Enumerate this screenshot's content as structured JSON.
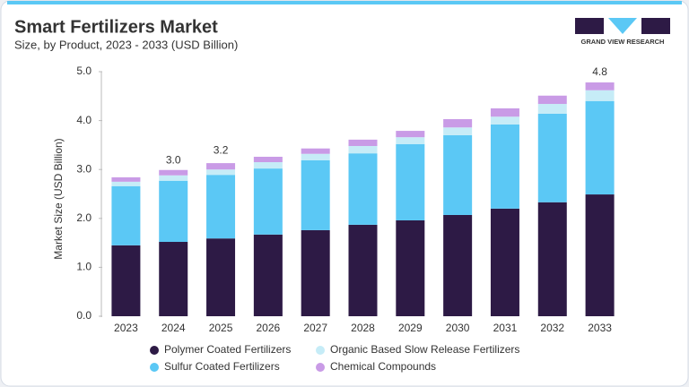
{
  "branding": "GRAND VIEW RESEARCH",
  "chart_data": {
    "type": "stacked-bar",
    "title": "Smart Fertilizers Market",
    "subtitle": "Size, by Product, 2023 - 2033 (USD Billion)",
    "y_label": "Market Size (USD Billion)",
    "categories": [
      "2023",
      "2024",
      "2025",
      "2026",
      "2027",
      "2028",
      "2029",
      "2030",
      "2031",
      "2032",
      "2033"
    ],
    "series": [
      {
        "name": "Polymer Coated Fertilizers",
        "color": "#2d1a45",
        "values": [
          1.45,
          1.52,
          1.59,
          1.67,
          1.76,
          1.87,
          1.96,
          2.07,
          2.2,
          2.33,
          2.49
        ]
      },
      {
        "name": "Sulfur Coated Fertilizers",
        "color": "#5bc8f5",
        "values": [
          1.21,
          1.25,
          1.3,
          1.35,
          1.43,
          1.46,
          1.56,
          1.63,
          1.72,
          1.81,
          1.91
        ]
      },
      {
        "name": "Organic Based Slow Release Fertilizers",
        "color": "#c6ecf7",
        "values": [
          0.09,
          0.11,
          0.11,
          0.13,
          0.13,
          0.15,
          0.14,
          0.16,
          0.16,
          0.2,
          0.22
        ]
      },
      {
        "name": "Chemical Compounds",
        "color": "#c99be6",
        "values": [
          0.09,
          0.11,
          0.13,
          0.11,
          0.11,
          0.13,
          0.13,
          0.17,
          0.17,
          0.17,
          0.16
        ]
      }
    ],
    "annotations": [
      {
        "x": "2024",
        "value": 3,
        "label": "3.0"
      },
      {
        "x": "2025",
        "value": 3.2,
        "label": "3.2"
      },
      {
        "x": "2033",
        "value": 4.8,
        "label": "4.8"
      }
    ],
    "ylim": [
      0,
      5
    ],
    "yticks": [
      {
        "value": 0,
        "label": "0.0"
      },
      {
        "value": 1,
        "label": "1.0"
      },
      {
        "value": 2,
        "label": "2.0"
      },
      {
        "value": 3,
        "label": "3.0"
      },
      {
        "value": 4,
        "label": "4.0"
      },
      {
        "value": 5,
        "label": "5.0"
      }
    ],
    "grid": false
  }
}
